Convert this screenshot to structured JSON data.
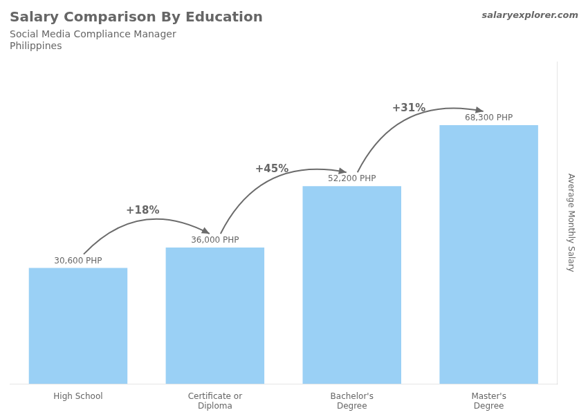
{
  "chart_data": {
    "type": "bar",
    "title": "Salary Comparison By Education",
    "subtitle": "Social Media Compliance Manager",
    "country": "Philippines",
    "brand": "salaryexplorer.com",
    "ylabel": "Average Monthly Salary",
    "categories": [
      "High School",
      "Certificate or\nDiploma",
      "Bachelor's\nDegree",
      "Master's\nDegree"
    ],
    "values": [
      30600,
      36000,
      52200,
      68300
    ],
    "value_labels": [
      "30,600 PHP",
      "36,000 PHP",
      "52,200 PHP",
      "68,300 PHP"
    ],
    "data_labels": true,
    "pct_changes": [
      "+18%",
      "+45%",
      "+31%"
    ],
    "ylim": [
      0,
      85000
    ],
    "yticks": [],
    "grid": false,
    "tick_labels": "x"
  }
}
